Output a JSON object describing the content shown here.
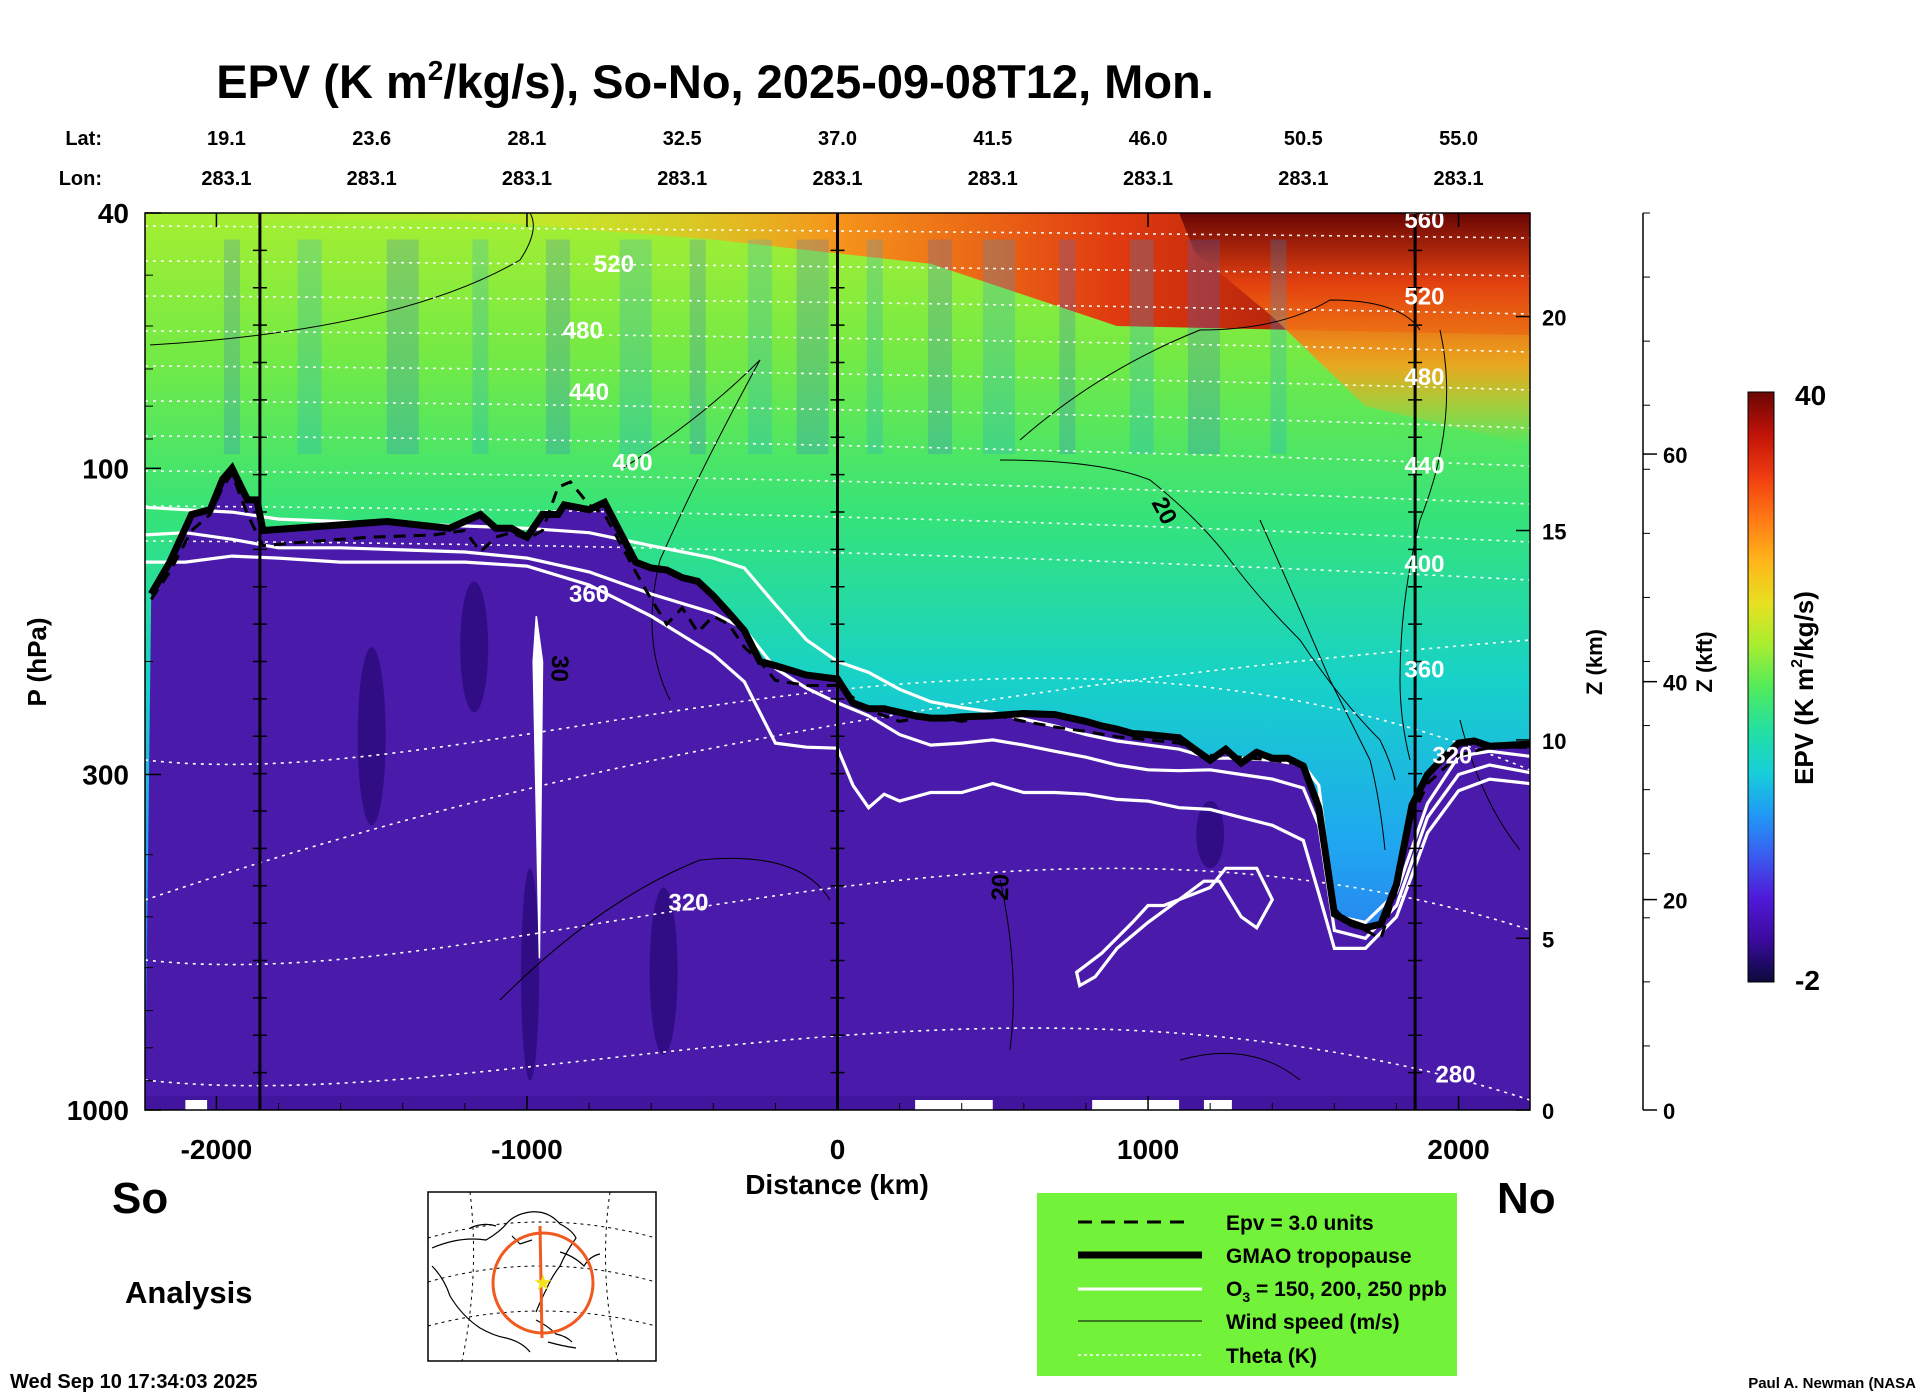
{
  "chart_data": {
    "type": "heatmap",
    "title_pre": "EPV (K m",
    "title_sup": "2",
    "title_post": "/kg/s), So-No, 2025-09-08T12, Mon.",
    "lat_label": "Lat:",
    "lon_label": "Lon:",
    "lat_ticks": [
      "19.1",
      "23.6",
      "28.1",
      "32.5",
      "37.0",
      "41.5",
      "46.0",
      "50.5",
      "55.0"
    ],
    "lon_ticks": [
      "283.1",
      "283.1",
      "283.1",
      "283.1",
      "283.1",
      "283.1",
      "283.1",
      "283.1",
      "283.1"
    ],
    "lat_tick_x": [
      -2000,
      -1500,
      -1000,
      -500,
      0,
      500,
      1000,
      1500,
      2000
    ],
    "xlabel": "Distance (km)",
    "xlim": [
      -2230,
      2230
    ],
    "x_ticks": [
      -2000,
      -1000,
      0,
      1000,
      2000
    ],
    "x_tick_labels": [
      "-2000",
      "-1000",
      "0",
      "1000",
      "2000"
    ],
    "ylabel": "P (hPa)",
    "y_log": true,
    "ylim": [
      1000,
      40
    ],
    "y_ticks": [
      40,
      100,
      300,
      1000
    ],
    "y_tick_labels": [
      "40",
      "100",
      "300",
      "1000"
    ],
    "z_km_label": "Z (km)",
    "z_km_ticks": [
      0,
      5,
      10,
      15,
      20
    ],
    "z_km_tick_labels": [
      "0",
      "5",
      "10",
      "15",
      "20"
    ],
    "z_km_pressure": [
      1000,
      540,
      265,
      125,
      58
    ],
    "z_kft_label": "Z (kft)",
    "z_kft_ticks": [
      0,
      20,
      40,
      60
    ],
    "z_kft_tick_labels": [
      "0",
      "20",
      "40",
      "60"
    ],
    "z_kft_pressure": [
      1000,
      470,
      215,
      95
    ],
    "colorbar": {
      "label_pre": "EPV (K m",
      "label_sup": "2",
      "label_post": "/kg/s)",
      "min": -2,
      "max": 40,
      "min_label": "-2",
      "max_label": "40",
      "colors": [
        "#0a0a3a",
        "#3b0a9e",
        "#4f1ad8",
        "#3a5cf0",
        "#1f9bf5",
        "#17d0d8",
        "#24e0a0",
        "#52eb5a",
        "#a8ee30",
        "#e8e020",
        "#ffb41a",
        "#ff7814",
        "#f03c10",
        "#c01208",
        "#6a0605"
      ]
    },
    "vertical_lines_x": [
      -1860,
      0,
      1860
    ],
    "theta": {
      "name": "Theta (K)",
      "labels": [
        {
          "text": "520",
          "x": -720,
          "p": 48
        },
        {
          "text": "480",
          "x": -820,
          "p": 61
        },
        {
          "text": "440",
          "x": -800,
          "p": 76
        },
        {
          "text": "400",
          "x": -660,
          "p": 98
        },
        {
          "text": "360",
          "x": -800,
          "p": 157
        },
        {
          "text": "320",
          "x": -480,
          "p": 475
        },
        {
          "text": "280",
          "x": 1990,
          "p": 880
        },
        {
          "text": "560",
          "x": 1890,
          "p": 41
        },
        {
          "text": "520",
          "x": 1890,
          "p": 54
        },
        {
          "text": "480",
          "x": 1890,
          "p": 72
        },
        {
          "text": "440",
          "x": 1890,
          "p": 99
        },
        {
          "text": "400",
          "x": 1890,
          "p": 141
        },
        {
          "text": "360",
          "x": 1890,
          "p": 206
        },
        {
          "text": "320",
          "x": 1980,
          "p": 280
        }
      ]
    },
    "wind_speed": {
      "name": "Wind speed (m/s)",
      "labels": [
        {
          "text": "20",
          "x": 1030,
          "p": 118,
          "angle": 62
        },
        {
          "text": "20",
          "x": 550,
          "p": 450,
          "angle": -88
        },
        {
          "text": "30",
          "x": -920,
          "p": 205,
          "angle": 92
        }
      ]
    },
    "tropopause": {
      "name": "GMAO tropopause",
      "x": [
        -2210,
        -2150,
        -2080,
        -2020,
        -1980,
        -1950,
        -1900,
        -1870,
        -1850,
        -1650,
        -1450,
        -1250,
        -1150,
        -1100,
        -1050,
        -1000,
        -950,
        -900,
        -880,
        -800,
        -750,
        -650,
        -600,
        -550,
        -500,
        -450,
        -400,
        -350,
        -300,
        -250,
        -200,
        -100,
        0,
        50,
        100,
        150,
        200,
        250,
        300,
        350,
        400,
        500,
        600,
        700,
        800,
        850,
        900,
        950,
        1000,
        1100,
        1150,
        1200,
        1250,
        1300,
        1350,
        1400,
        1450,
        1500,
        1550,
        1600,
        1650,
        1700,
        1750,
        1800,
        1850,
        1900,
        1950,
        2000,
        2050,
        2100,
        2230
      ],
      "p": [
        157,
        140,
        118,
        116,
        104,
        100,
        112,
        112,
        125,
        123,
        121,
        124,
        118,
        124,
        124,
        128,
        118,
        118,
        114,
        116,
        113,
        140,
        143,
        144,
        148,
        150,
        158,
        168,
        179,
        200,
        203,
        210,
        213,
        232,
        237,
        237,
        240,
        243,
        245,
        245,
        244,
        243,
        241,
        242,
        248,
        252,
        255,
        259,
        260,
        263,
        274,
        285,
        274,
        288,
        277,
        283,
        283,
        291,
        338,
        495,
        510,
        520,
        513,
        445,
        335,
        300,
        283,
        268,
        266,
        271,
        269
      ]
    },
    "epv_3": {
      "name": "Epv = 3.0 units",
      "x": [
        -2210,
        -2150,
        -2080,
        -2020,
        -1980,
        -1950,
        -1900,
        -1850,
        -1700,
        -1500,
        -1300,
        -1200,
        -1150,
        -1100,
        -1050,
        -1000,
        -950,
        -900,
        -860,
        -800,
        -750,
        -650,
        -600,
        -550,
        -500,
        -450,
        -400,
        -350,
        -300,
        -250,
        -200,
        -100,
        0,
        100,
        200,
        300,
        400,
        500,
        600,
        700,
        800,
        900,
        1000,
        1100,
        1200,
        1300,
        1400,
        1500,
        1550,
        1600,
        1650,
        1700,
        1750,
        1800,
        1850,
        1900,
        2000,
        2100,
        2230
      ],
      "p": [
        160,
        145,
        125,
        118,
        107,
        102,
        118,
        132,
        130,
        128,
        127,
        125,
        135,
        128,
        126,
        129,
        125,
        107,
        105,
        114,
        118,
        145,
        160,
        175,
        165,
        180,
        170,
        175,
        190,
        200,
        214,
        218,
        218,
        238,
        248,
        243,
        248,
        242,
        248,
        253,
        257,
        262,
        265,
        268,
        280,
        282,
        285,
        290,
        330,
        485,
        515,
        525,
        540,
        455,
        350,
        310,
        280,
        272,
        272
      ]
    },
    "ozone": {
      "name": "O₃ = 150, 200, 250 ppb",
      "name_pre": "O",
      "name_sub": "3",
      "name_post": " = 150, 200, 250 ppb",
      "contours": [
        {
          "x": [
            -2230,
            -2100,
            -1950,
            -1800,
            -1600,
            -1400,
            -1200,
            -1000,
            -800,
            -600,
            -400,
            -300,
            -200,
            -100,
            0,
            100,
            200,
            300,
            400,
            500,
            600,
            700,
            800,
            900,
            1000,
            1100,
            1200,
            1300,
            1400,
            1500,
            1550,
            1600,
            1700,
            1800,
            1900,
            2000,
            2100,
            2230
          ],
          "p": [
            115,
            116,
            117,
            120,
            121,
            122,
            123,
            124,
            126,
            132,
            138,
            143,
            163,
            185,
            200,
            208,
            221,
            231,
            236,
            240,
            246,
            252,
            260,
            266,
            270,
            274,
            283,
            283,
            285,
            290,
            312,
            498,
            510,
            458,
            333,
            281,
            276,
            281
          ]
        },
        {
          "x": [
            -2230,
            -2100,
            -1950,
            -1800,
            -1600,
            -1400,
            -1200,
            -1000,
            -800,
            -600,
            -400,
            -300,
            -200,
            -100,
            0,
            100,
            200,
            300,
            400,
            500,
            600,
            700,
            800,
            900,
            1000,
            1100,
            1200,
            1300,
            1400,
            1500,
            1550,
            1600,
            1700,
            1800,
            1900,
            2000,
            2100,
            2230
          ],
          "p": [
            127,
            126,
            129,
            133,
            133,
            134,
            135,
            138,
            145,
            157,
            168,
            178,
            205,
            220,
            232,
            243,
            260,
            270,
            268,
            265,
            270,
            276,
            282,
            290,
            295,
            296,
            295,
            300,
            305,
            315,
            360,
            525,
            540,
            480,
            350,
            300,
            290,
            298
          ]
        },
        {
          "x": [
            -2230,
            -2100,
            -1950,
            -1800,
            -1600,
            -1400,
            -1200,
            -1000,
            -800,
            -600,
            -400,
            -300,
            -200,
            -100,
            0,
            50,
            100,
            150,
            200,
            300,
            400,
            500,
            600,
            700,
            800,
            900,
            1000,
            1100,
            1200,
            1300,
            1400,
            1500,
            1550,
            1600,
            1700,
            1800,
            1900,
            2000,
            2100,
            2230
          ],
          "p": [
            140,
            140,
            137,
            138,
            140,
            140,
            140,
            142,
            152,
            170,
            195,
            215,
            268,
            272,
            273,
            312,
            338,
            322,
            330,
            320,
            320,
            310,
            320,
            320,
            322,
            328,
            330,
            338,
            340,
            350,
            360,
            380,
            460,
            560,
            560,
            500,
            370,
            318,
            305,
            310
          ]
        }
      ],
      "blobs": [
        {
          "x": [
            770,
            850,
            950,
            1000,
            1050,
            1100,
            1150,
            1200,
            1250,
            1350,
            1400,
            1350,
            1300,
            1230,
            1180,
            1100,
            1000,
            900,
            830,
            780,
            770
          ],
          "p": [
            610,
            570,
            510,
            480,
            480,
            470,
            460,
            450,
            420,
            420,
            470,
            520,
            500,
            440,
            440,
            470,
            510,
            560,
            620,
            640,
            610
          ]
        }
      ]
    },
    "ozone_streak": {
      "x": [
        -970,
        -950,
        -960,
        -980
      ],
      "p": [
        170,
        200,
        580,
        200
      ]
    },
    "map_labels": {
      "south": "So",
      "north": "No",
      "analysis": "Analysis"
    },
    "legend": [
      {
        "key": "epv",
        "label": "Epv = 3.0 units"
      },
      {
        "key": "trop",
        "label": "GMAO tropopause"
      },
      {
        "key": "o3",
        "label_pre": "O",
        "label_sub": "3",
        "label_post": " = 150, 200, 250 ppb"
      },
      {
        "key": "wind",
        "label": "Wind speed (m/s)"
      },
      {
        "key": "theta",
        "label": "Theta (K)"
      }
    ]
  },
  "footer": {
    "timestamp": "Wed Sep 10 17:34:03 2025",
    "credit": "Paul A. Newman (NASA"
  },
  "colors": {
    "legend_bg": "#73f23a",
    "surface": "#4a1aaa",
    "map_track": "#f05a1e",
    "map_star": "#f2e21a"
  }
}
